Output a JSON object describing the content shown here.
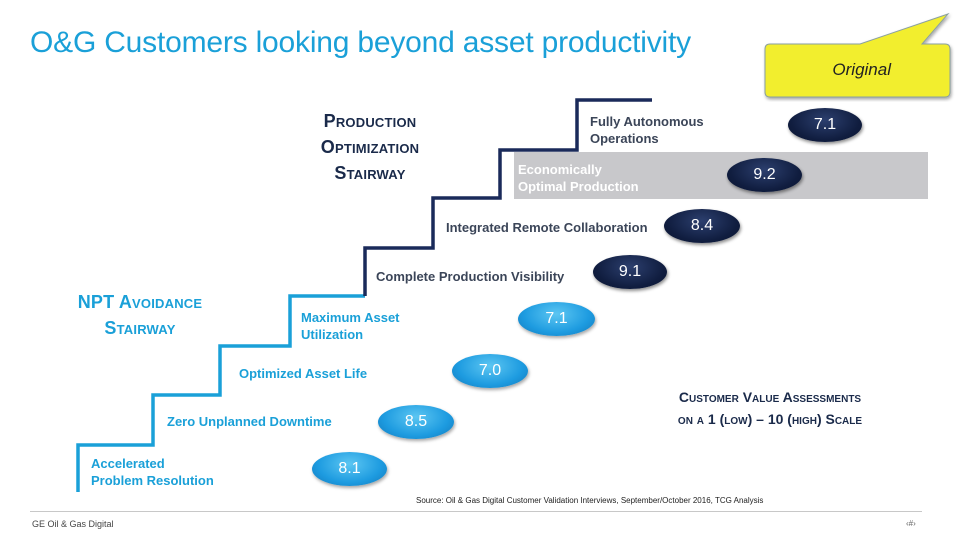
{
  "title": "O&G Customers looking beyond asset productivity",
  "callout": {
    "text": "Original"
  },
  "production_stairway": {
    "title_line1": "Production",
    "title_line2": "Optimization",
    "title_line3": "Stairway",
    "steps": [
      {
        "label_line1": "Fully Autonomous",
        "label_line2": "Operations",
        "score": "7.1"
      },
      {
        "label_line1": "Economically",
        "label_line2": "Optimal Production",
        "score": "9.2"
      },
      {
        "label_line1": "Integrated Remote Collaboration",
        "score": "8.4"
      },
      {
        "label_line1": "Complete Production Visibility",
        "score": "9.1"
      }
    ]
  },
  "npt_stairway": {
    "title_line1": "NPT Avoidance",
    "title_line2": "Stairway",
    "steps": [
      {
        "label_line1": "Maximum Asset",
        "label_line2": "Utilization",
        "score": "7.1"
      },
      {
        "label_line1": "Optimized Asset Life",
        "score": "7.0"
      },
      {
        "label_line1": "Zero Unplanned Downtime",
        "score": "8.5"
      },
      {
        "label_line1": "Accelerated",
        "label_line2": "Problem Resolution",
        "score": "8.1"
      }
    ]
  },
  "scale_note": {
    "line1": "Customer Value Assessments",
    "line2": "on a 1 (low) – 10 (high) Scale"
  },
  "source": "Source: Oil & Gas Digital Customer Validation Interviews, September/October 2016, TCG Analysis",
  "footer": {
    "left": "GE Oil & Gas Digital",
    "right": "‹#›"
  },
  "colors": {
    "accent": "#1aa0d8",
    "dark_navy": "#101d3f",
    "band_gray": "#c8c8cb",
    "callout_yellow": "#f2ee2e"
  }
}
